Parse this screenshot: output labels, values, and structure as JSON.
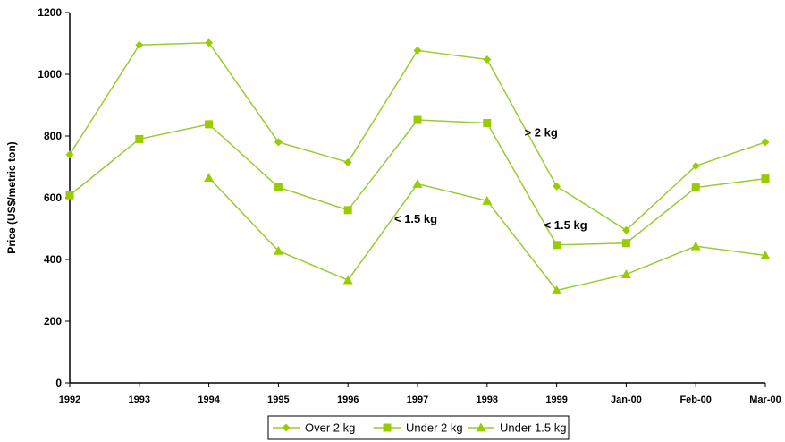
{
  "chart_data": {
    "type": "line",
    "ylabel": "Price (US$/metric ton)",
    "xlabel": "",
    "ylim": [
      0,
      1200
    ],
    "yticks": [
      0,
      200,
      400,
      600,
      800,
      1000,
      1200
    ],
    "categories": [
      "1992",
      "1993",
      "1994",
      "1995",
      "1996",
      "1997",
      "1998",
      "1999",
      "Jan-00",
      "Feb-00",
      "Mar-00"
    ],
    "series": [
      {
        "name": "Over 2 kg",
        "marker": "diamond",
        "values": [
          740,
          1095,
          1102,
          780,
          715,
          1077,
          1048,
          637,
          495,
          703,
          780
        ]
      },
      {
        "name": "Under 2 kg",
        "marker": "square",
        "values": [
          608,
          790,
          838,
          634,
          560,
          852,
          842,
          447,
          453,
          633,
          662
        ]
      },
      {
        "name": "Under 1.5 kg",
        "marker": "triangle",
        "values": [
          null,
          null,
          665,
          428,
          333,
          645,
          590,
          300,
          352,
          443,
          413
        ]
      }
    ],
    "annotations": [
      {
        "text": "> 2 kg",
        "x": "1999",
        "y": 810
      },
      {
        "text": "< 1.5 kg",
        "x": "1997",
        "y": 530
      },
      {
        "text": "< 1.5 kg",
        "x": "1999",
        "y": 510
      }
    ],
    "grid": false,
    "legend_position": "bottom",
    "line_color": "#99cc33",
    "marker_color": "#99cc00"
  }
}
